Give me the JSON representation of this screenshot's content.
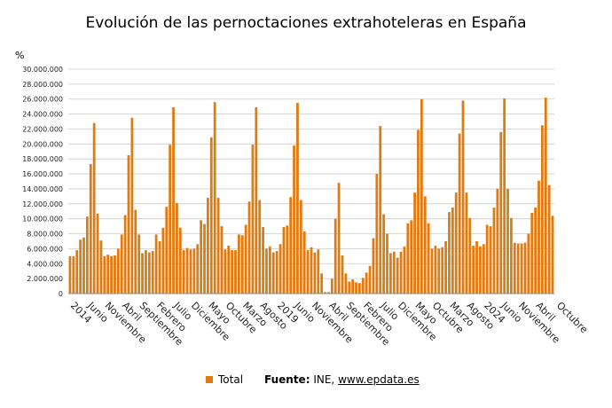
{
  "colors": {
    "bar": "#e07b12",
    "grid": "#cccccc",
    "axis": "#888888"
  },
  "legend": {
    "series_label": "Total"
  },
  "source": {
    "label": "Fuente:",
    "text": "INE,",
    "link": "www.epdata.es"
  },
  "chart_data": {
    "type": "bar",
    "title": "Evolución de las pernoctaciones extrahoteleras en España",
    "ylabel": "%",
    "ylim": [
      0,
      30000000
    ],
    "yticks": [
      "0",
      "2.000.000",
      "4.000.000",
      "6.000.000",
      "8.000.000",
      "10.000.000",
      "12.000.000",
      "14.000.000",
      "16.000.000",
      "18.000.000",
      "20.000.000",
      "22.000.000",
      "24.000.000",
      "26.000.000",
      "28.000.000",
      "30.000.000"
    ],
    "xtick_labels": [
      {
        "index": 0,
        "label": "2014"
      },
      {
        "index": 5,
        "label": "Junio"
      },
      {
        "index": 10,
        "label": "Noviembre"
      },
      {
        "index": 15,
        "label": "Abril"
      },
      {
        "index": 20,
        "label": "Septiembre"
      },
      {
        "index": 25,
        "label": "Febrero"
      },
      {
        "index": 30,
        "label": "Julio"
      },
      {
        "index": 35,
        "label": "Diciembre"
      },
      {
        "index": 40,
        "label": "Mayo"
      },
      {
        "index": 45,
        "label": "Octubre"
      },
      {
        "index": 50,
        "label": "Marzo"
      },
      {
        "index": 55,
        "label": "Agosto"
      },
      {
        "index": 60,
        "label": "2019"
      },
      {
        "index": 65,
        "label": "Junio"
      },
      {
        "index": 70,
        "label": "Noviembre"
      },
      {
        "index": 75,
        "label": "Abril"
      },
      {
        "index": 80,
        "label": "Septiembre"
      },
      {
        "index": 85,
        "label": "Febrero"
      },
      {
        "index": 90,
        "label": "Julio"
      },
      {
        "index": 95,
        "label": "Diciembre"
      },
      {
        "index": 100,
        "label": "Mayo"
      },
      {
        "index": 105,
        "label": "Octubre"
      },
      {
        "index": 110,
        "label": "Marzo"
      },
      {
        "index": 115,
        "label": "Agosto"
      },
      {
        "index": 120,
        "label": "2024"
      },
      {
        "index": 125,
        "label": "Junio"
      },
      {
        "index": 130,
        "label": "Noviembre"
      },
      {
        "index": 135,
        "label": "Abril"
      },
      {
        "index": 141,
        "label": "Octubre"
      }
    ],
    "series": [
      {
        "name": "Total",
        "start": "Enero 2014",
        "values": [
          5000000,
          5000000,
          5800000,
          7200000,
          7500000,
          10300000,
          17300000,
          22800000,
          10700000,
          7100000,
          5000000,
          5200000,
          5000000,
          5100000,
          6000000,
          7900000,
          10500000,
          18500000,
          23500000,
          11200000,
          7900000,
          5400000,
          5800000,
          5500000,
          5700000,
          7900000,
          7000000,
          8800000,
          11600000,
          19900000,
          24900000,
          12100000,
          8800000,
          5800000,
          6100000,
          5900000,
          6000000,
          6600000,
          9800000,
          9300000,
          12800000,
          20900000,
          25600000,
          12800000,
          9000000,
          5900000,
          6400000,
          5800000,
          5800000,
          7900000,
          7800000,
          9200000,
          12300000,
          19900000,
          24900000,
          12500000,
          8900000,
          6000000,
          6300000,
          5500000,
          5700000,
          6600000,
          8900000,
          9100000,
          12900000,
          19800000,
          25500000,
          12500000,
          8300000,
          5800000,
          6200000,
          5500000,
          5900000,
          2700000,
          200000,
          200000,
          2000000,
          10000000,
          14800000,
          5100000,
          2700000,
          1600000,
          1900000,
          1500000,
          1400000,
          2100000,
          2800000,
          3700000,
          7400000,
          16000000,
          22400000,
          10600000,
          8000000,
          5400000,
          5600000,
          4800000,
          5600000,
          6300000,
          9400000,
          9800000,
          13500000,
          21900000,
          26000000,
          13000000,
          9400000,
          6000000,
          6400000,
          6000000,
          6200000,
          7000000,
          10900000,
          11500000,
          13500000,
          21400000,
          25800000,
          13500000,
          10100000,
          6400000,
          7000000,
          6300000,
          6600000,
          9200000,
          9000000,
          11500000,
          14000000,
          21600000,
          26100000,
          14000000,
          10100000,
          6800000,
          6700000,
          6700000,
          6800000,
          8000000,
          10800000,
          11500000,
          15100000,
          22500000,
          26200000,
          14500000,
          10400000
        ]
      }
    ]
  }
}
